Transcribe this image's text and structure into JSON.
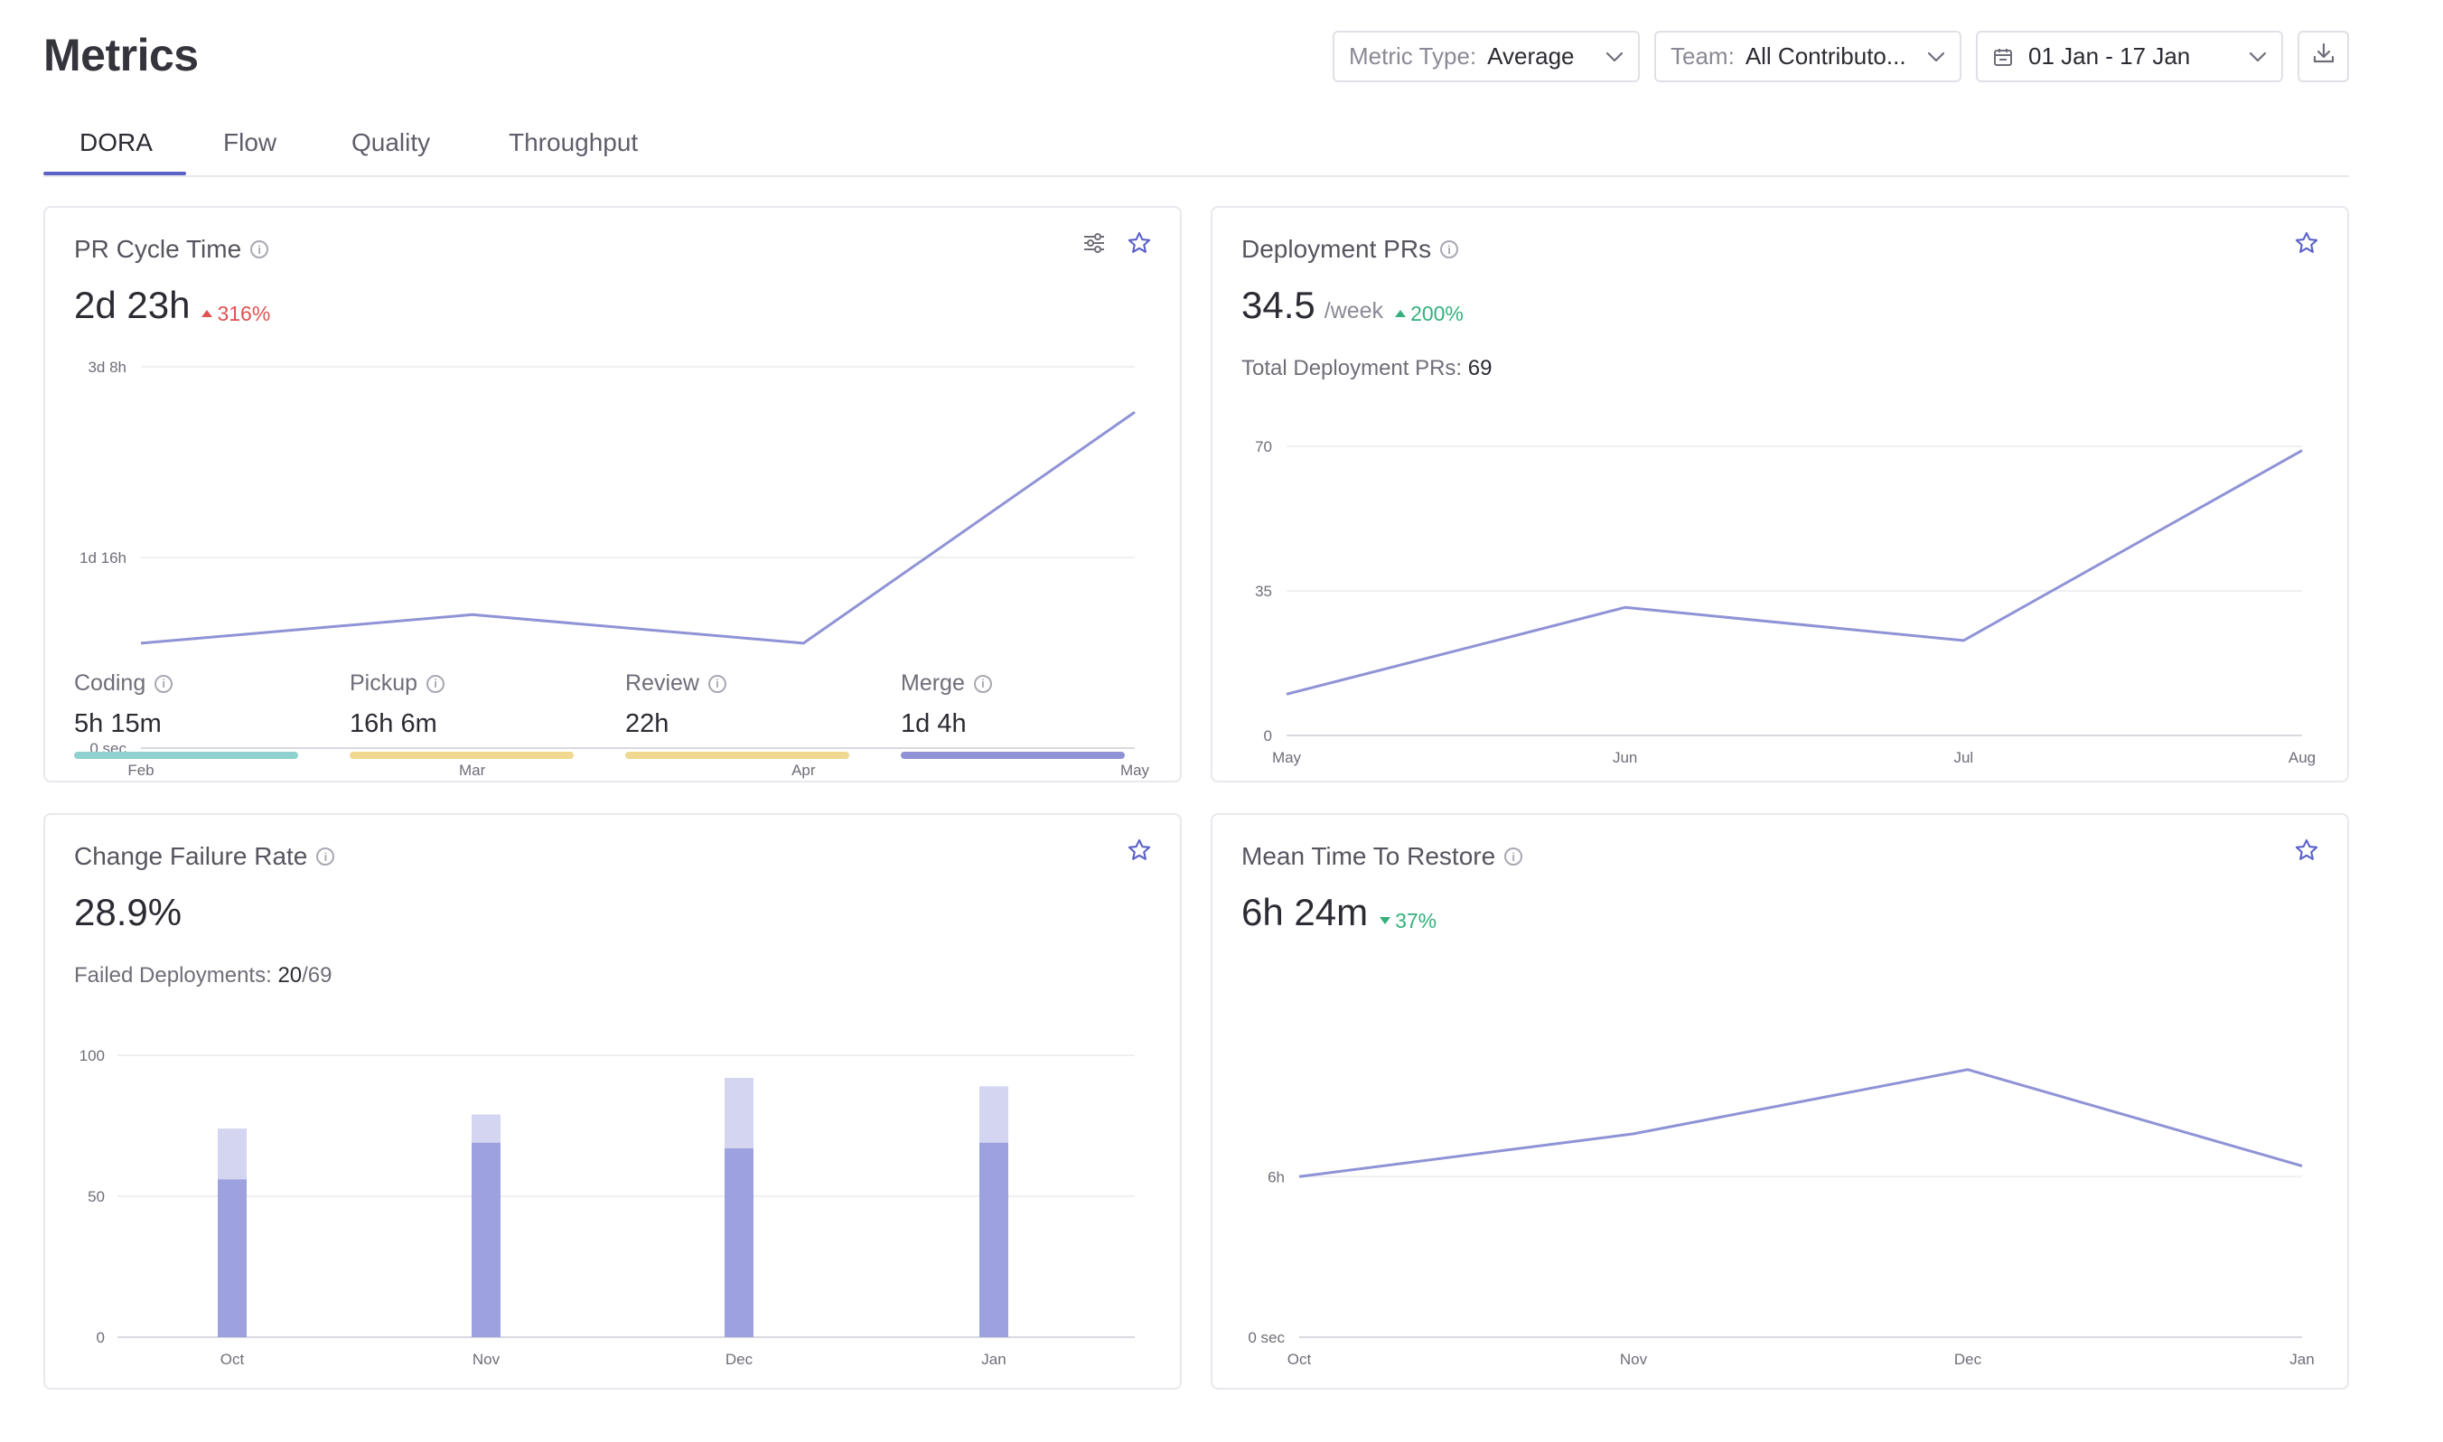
{
  "page": {
    "title": "Metrics"
  },
  "toolbar": {
    "metric_type": {
      "label": "Metric Type:",
      "value": "Average"
    },
    "team": {
      "label": "Team:",
      "value": "All Contributo..."
    },
    "date_range": {
      "value": "01 Jan - 17 Jan"
    }
  },
  "tabs": [
    {
      "label": "DORA",
      "active": true
    },
    {
      "label": "Flow",
      "active": false
    },
    {
      "label": "Quality",
      "active": false
    },
    {
      "label": "Throughput",
      "active": false
    }
  ],
  "colors": {
    "accent": "#5b61c7",
    "line": "#8f93d6",
    "bar_base": "#9da1dd",
    "bar_top": "#d3d5f1",
    "coding": "#8fd1cf",
    "pickup": "#f0d890",
    "review": "#f0d890",
    "merge": "#8f93d6"
  },
  "cards": {
    "pr_cycle_time": {
      "title": "PR Cycle Time",
      "value": "2d 23h",
      "delta": "316%",
      "breakdown": [
        {
          "label": "Coding",
          "value": "5h 15m",
          "color": "#8fd1cf"
        },
        {
          "label": "Pickup",
          "value": "16h 6m",
          "color": "#f0d890"
        },
        {
          "label": "Review",
          "value": "22h",
          "color": "#f0d890"
        },
        {
          "label": "Merge",
          "value": "1d 4h",
          "color": "#8f93d6"
        }
      ]
    },
    "deployment_prs": {
      "title": "Deployment PRs",
      "value": "34.5",
      "unit": "/week",
      "delta": "200%",
      "total_label": "Total Deployment PRs:",
      "total_value": "69"
    },
    "change_failure_rate": {
      "title": "Change Failure Rate",
      "value": "28.9%",
      "failed_label": "Failed Deployments:",
      "failed_value": "20",
      "failed_total": "/69"
    },
    "mean_time_to_restore": {
      "title": "Mean Time To Restore",
      "value": "6h 24m",
      "delta": "37%"
    }
  },
  "chart_data": [
    {
      "id": "pr_cycle_time",
      "type": "line",
      "x": [
        "Feb",
        "Mar",
        "Apr",
        "May"
      ],
      "y_ticks": [
        "0 sec",
        "1d 16h",
        "3d 8h"
      ],
      "ylim_hours": [
        0,
        80
      ],
      "series": [
        {
          "values_hours": [
            22,
            28,
            22,
            70.5
          ]
        }
      ]
    },
    {
      "id": "deployment_prs",
      "type": "line",
      "x": [
        "May",
        "Jun",
        "Jul",
        "Aug"
      ],
      "y_ticks": [
        "0",
        "35",
        "70"
      ],
      "ylim": [
        0,
        70
      ],
      "series": [
        {
          "values": [
            10,
            31,
            23,
            69
          ]
        }
      ]
    },
    {
      "id": "change_failure_rate",
      "type": "bar",
      "categories": [
        "Oct",
        "Nov",
        "Dec",
        "Jan"
      ],
      "y_ticks": [
        "0",
        "50",
        "100"
      ],
      "ylim": [
        0,
        100
      ],
      "series": [
        {
          "values": [
            56,
            69,
            67,
            69
          ]
        },
        {
          "values": [
            18,
            10,
            25,
            20
          ]
        }
      ]
    },
    {
      "id": "mean_time_to_restore",
      "type": "line",
      "x": [
        "Oct",
        "Nov",
        "Dec",
        "Jan"
      ],
      "y_ticks": [
        "0 sec",
        "6h"
      ],
      "ylim_hours": [
        0,
        10.4
      ],
      "series": [
        {
          "values_hours": [
            6,
            7.6,
            10,
            6.4
          ]
        }
      ]
    }
  ]
}
